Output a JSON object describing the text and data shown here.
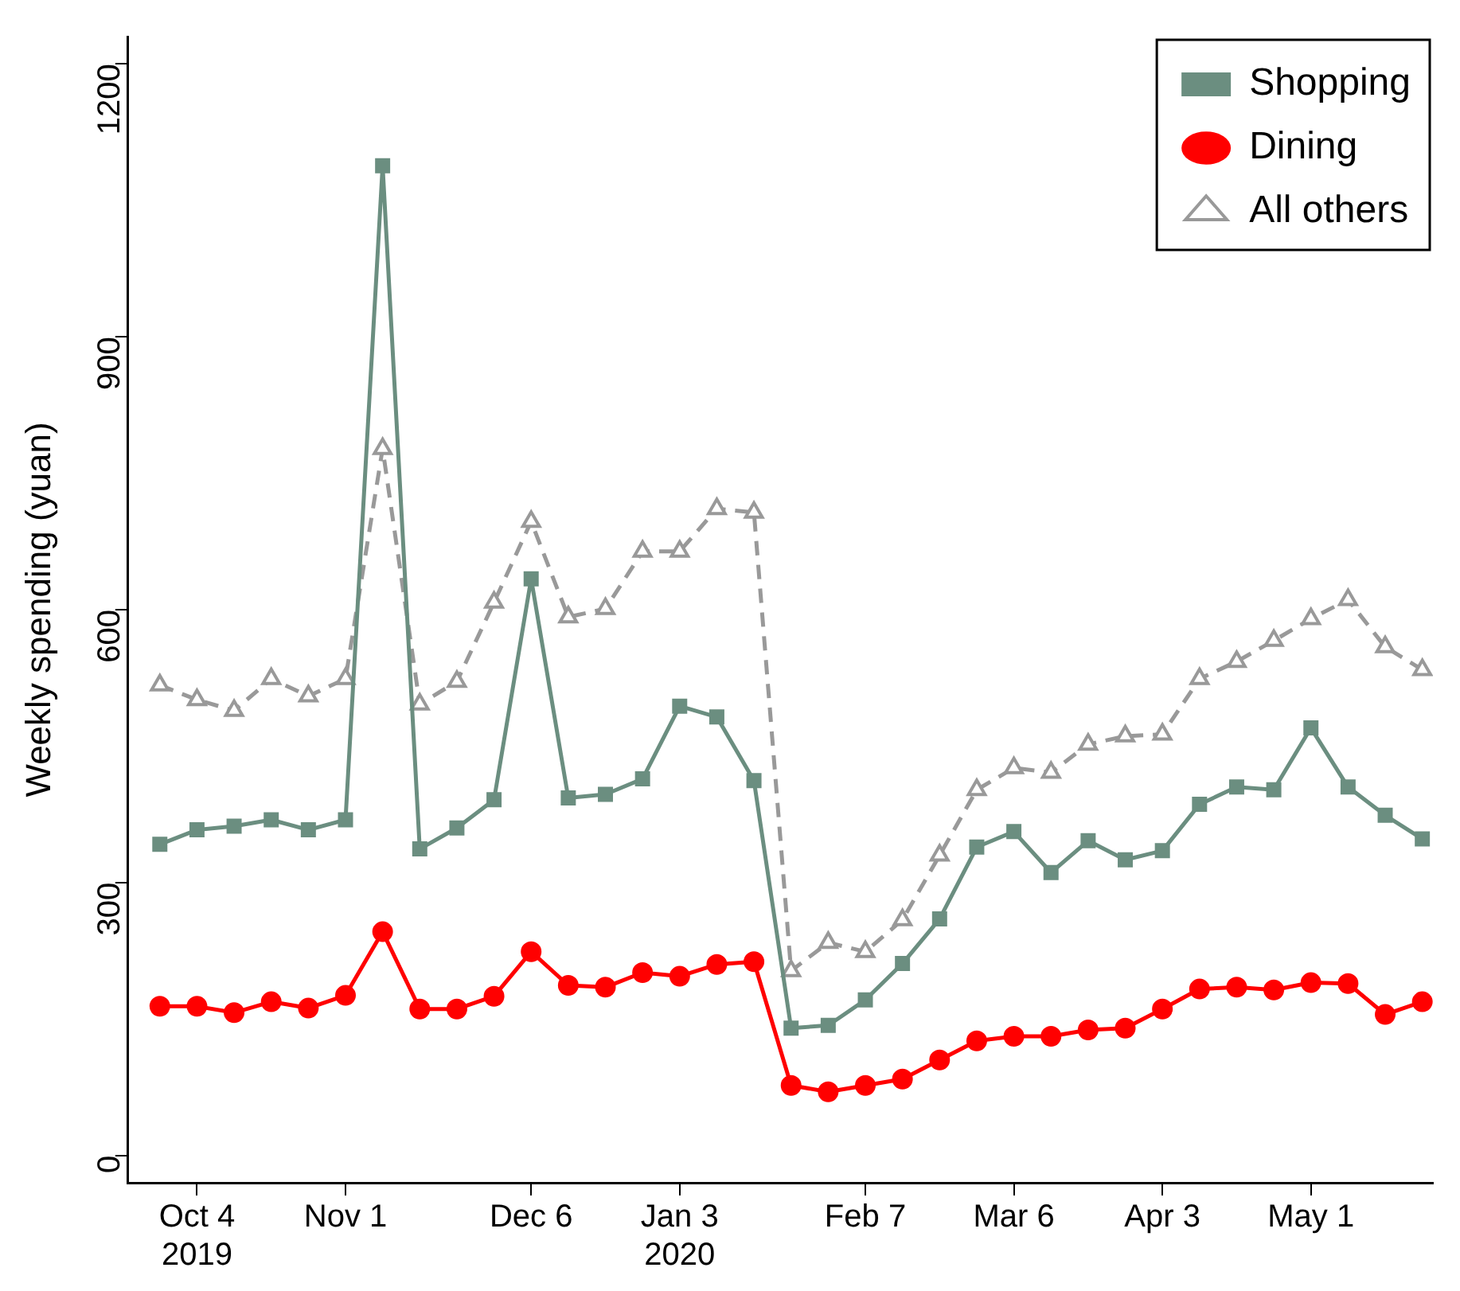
{
  "chart_data": {
    "type": "line",
    "ylabel": "Weekly spending (yuan)",
    "x": [
      "2019-09-27",
      "2019-10-04",
      "2019-10-11",
      "2019-10-18",
      "2019-10-25",
      "2019-11-01",
      "2019-11-08",
      "2019-11-15",
      "2019-11-22",
      "2019-11-29",
      "2019-12-06",
      "2019-12-13",
      "2019-12-20",
      "2019-12-27",
      "2020-01-03",
      "2020-01-10",
      "2020-01-17",
      "2020-01-24",
      "2020-01-31",
      "2020-02-07",
      "2020-02-14",
      "2020-02-21",
      "2020-02-28",
      "2020-03-06",
      "2020-03-13",
      "2020-03-20",
      "2020-03-27",
      "2020-04-03",
      "2020-04-10",
      "2020-04-17",
      "2020-04-24",
      "2020-05-01",
      "2020-05-08",
      "2020-05-15",
      "2020-05-22"
    ],
    "series": [
      {
        "name": "Shopping",
        "color": "#6b8e80",
        "marker": "square",
        "line_style": "solid",
        "values": [
          342,
          358,
          362,
          369,
          358,
          369,
          1088,
          337,
          360,
          391,
          634,
          393,
          397,
          414,
          494,
          482,
          412,
          140,
          143,
          171,
          211,
          260,
          339,
          356,
          311,
          346,
          325,
          335,
          386,
          405,
          402,
          470,
          405,
          374,
          348
        ]
      },
      {
        "name": "Dining",
        "color": "#ff0000",
        "marker": "circle",
        "line_style": "solid",
        "values": [
          164,
          164,
          157,
          169,
          162,
          176,
          246,
          161,
          161,
          175,
          224,
          187,
          185,
          201,
          197,
          210,
          213,
          77,
          70,
          77,
          84,
          105,
          126,
          131,
          131,
          138,
          140,
          161,
          183,
          185,
          182,
          190,
          189,
          155,
          169
        ]
      },
      {
        "name": "All others",
        "color": "#999999",
        "marker": "triangle",
        "line_style": "dashed",
        "values": [
          517,
          501,
          489,
          524,
          505,
          524,
          777,
          496,
          521,
          608,
          697,
          592,
          601,
          664,
          664,
          711,
          707,
          203,
          234,
          224,
          259,
          330,
          402,
          426,
          421,
          452,
          461,
          463,
          524,
          543,
          566,
          590,
          611,
          559,
          534
        ]
      }
    ],
    "xlim": [
      "2019-09-21",
      "2020-05-24"
    ],
    "xticks": [
      {
        "value": "2019-10-04",
        "label": "Oct 4\n2019"
      },
      {
        "value": "2019-11-01",
        "label": "Nov 1"
      },
      {
        "value": "2019-12-06",
        "label": "Dec 6"
      },
      {
        "value": "2020-01-03",
        "label": "Jan 3\n2020"
      },
      {
        "value": "2020-02-07",
        "label": "Feb 7"
      },
      {
        "value": "2020-03-06",
        "label": "Mar 6"
      },
      {
        "value": "2020-04-03",
        "label": "Apr 3"
      },
      {
        "value": "2020-05-01",
        "label": "May 1"
      }
    ],
    "ylim": [
      -30,
      1230
    ],
    "yticks": [
      0,
      300,
      600,
      900,
      1200
    ],
    "grid": false,
    "legend": "top right"
  }
}
